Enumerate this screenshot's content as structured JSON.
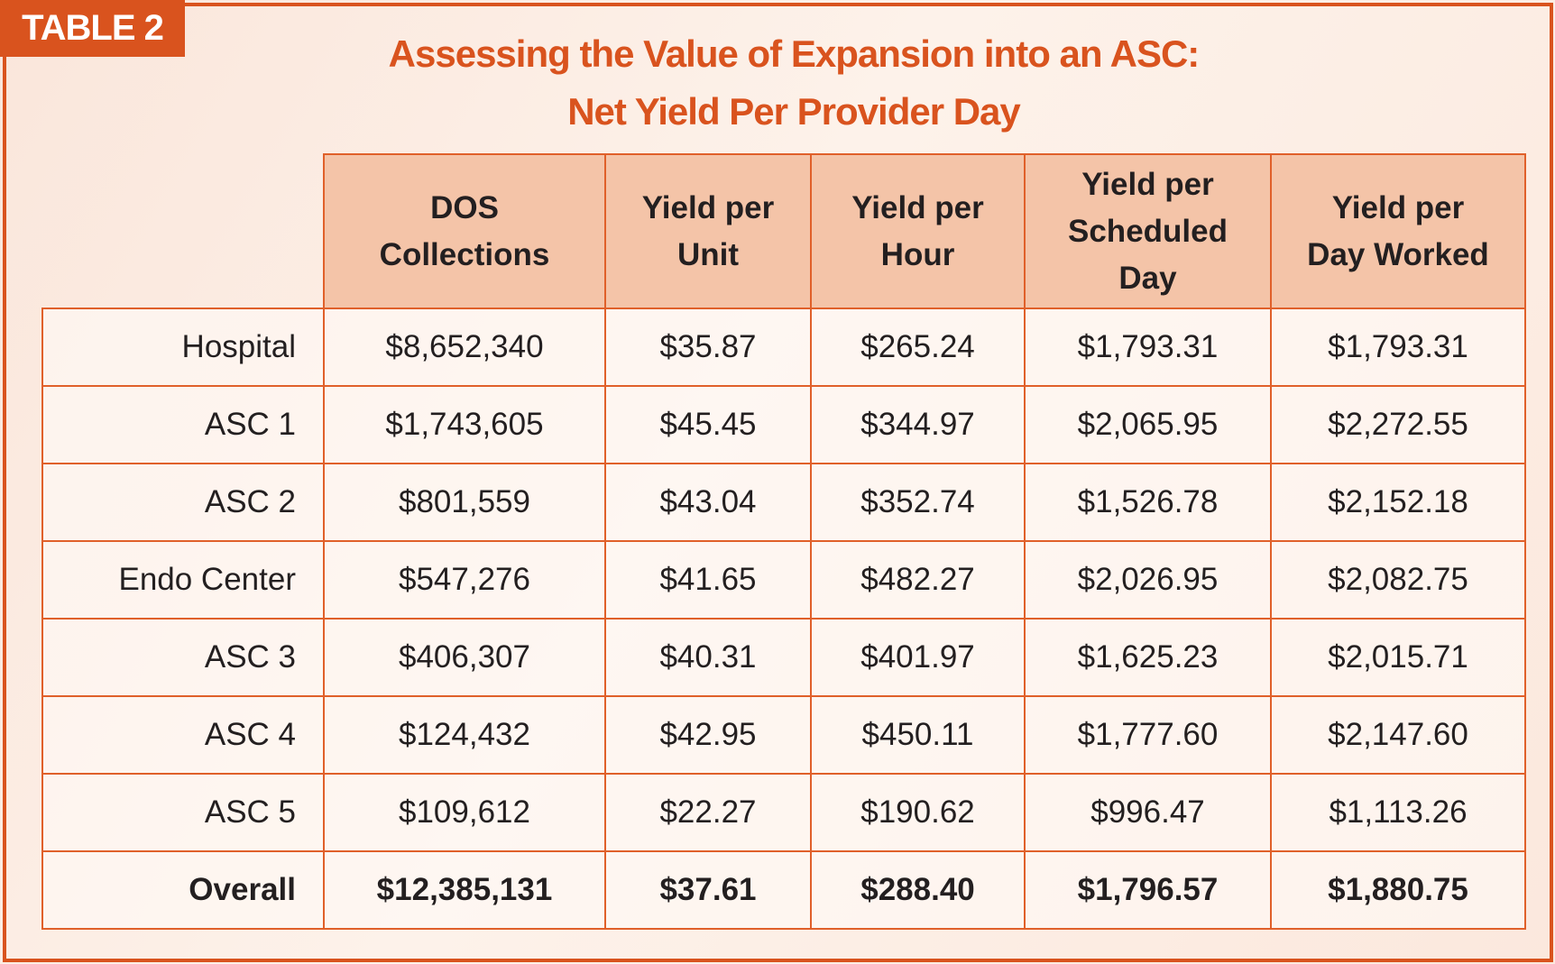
{
  "tag": "TABLE 2",
  "title": {
    "line1": "Assessing the Value of Expansion into an ASC:",
    "line2": "Net Yield Per Provider Day"
  },
  "headers": [
    {
      "l1": "DOS",
      "l2": "Collections"
    },
    {
      "l1": "Yield per",
      "l2": "Unit"
    },
    {
      "l1": "Yield per",
      "l2": "Hour"
    },
    {
      "l1": "Yield per",
      "l2": "Scheduled",
      "l3": "Day"
    },
    {
      "l1": "Yield per",
      "l2": "Day Worked"
    }
  ],
  "rows": [
    {
      "label": "Hospital",
      "values": [
        "$8,652,340",
        "$35.87",
        "$265.24",
        "$1,793.31",
        "$1,793.31"
      ]
    },
    {
      "label": "ASC 1",
      "values": [
        "$1,743,605",
        "$45.45",
        "$344.97",
        "$2,065.95",
        "$2,272.55"
      ]
    },
    {
      "label": "ASC 2",
      "values": [
        "$801,559",
        "$43.04",
        "$352.74",
        "$1,526.78",
        "$2,152.18"
      ]
    },
    {
      "label": "Endo Center",
      "values": [
        "$547,276",
        "$41.65",
        "$482.27",
        "$2,026.95",
        "$2,082.75"
      ]
    },
    {
      "label": "ASC 3",
      "values": [
        "$406,307",
        "$40.31",
        "$401.97",
        "$1,625.23",
        "$2,015.71"
      ]
    },
    {
      "label": "ASC 4",
      "values": [
        "$124,432",
        "$42.95",
        "$450.11",
        "$1,777.60",
        "$2,147.60"
      ]
    },
    {
      "label": "ASC 5",
      "values": [
        "$109,612",
        "$22.27",
        "$190.62",
        "$996.47",
        "$1,113.26"
      ]
    },
    {
      "label": "Overall",
      "values": [
        "$12,385,131",
        "$37.61",
        "$288.40",
        "$1,796.57",
        "$1,880.75"
      ]
    }
  ],
  "colors": {
    "accent": "#d9531e",
    "header_fill": "#f4c4a8"
  }
}
